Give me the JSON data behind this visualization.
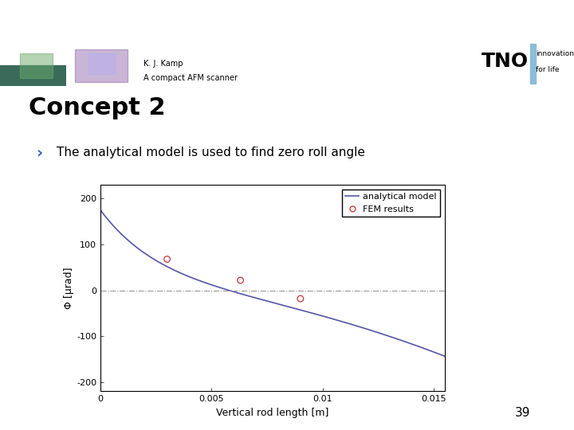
{
  "title": "Concept 2",
  "bullet": "The analytical model is used to find zero roll angle",
  "bullet_arrow": "›",
  "xlabel": "Vertical rod length [m]",
  "ylabel": "Φ [μrad]",
  "xlim": [
    0,
    0.0155
  ],
  "ylim": [
    -220,
    230
  ],
  "xticks": [
    0,
    0.005,
    0.01,
    0.015
  ],
  "xtick_labels": [
    "0",
    "0.005",
    "0.01",
    "0.015"
  ],
  "yticks": [
    -200,
    -100,
    0,
    100,
    200
  ],
  "analytical_color": "#5555aa",
  "fem_color": "#cc4444",
  "zero_line_color": "#999999",
  "header_bar_color": "#8bbdd9",
  "bg_color": "#ffffff",
  "slide_number": "39",
  "header_text_line1": "K. J. Kamp",
  "header_text_line2": "A compact AFM scanner",
  "legend_labels": [
    "analytical model",
    "FEM results"
  ],
  "fem_points_x": [
    0.003,
    0.0063,
    0.009
  ],
  "fem_points_y": [
    68,
    22,
    -18
  ],
  "img1_color_top": "#4a7a4a",
  "img1_color_bottom": "#2a5a6a",
  "img2_color_top": "#5a3a7a",
  "img2_color_bottom": "#3a2a5a"
}
